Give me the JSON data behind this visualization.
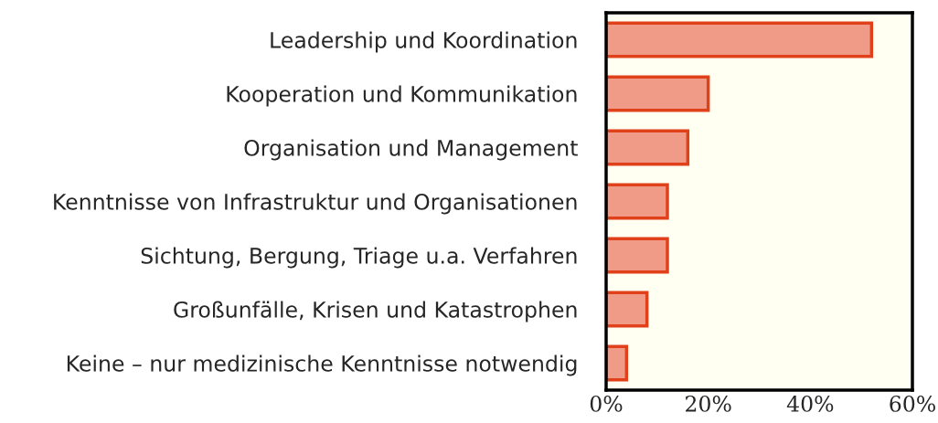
{
  "chart_data": {
    "type": "bar",
    "orientation": "horizontal",
    "categories": [
      "Leadership und Koordination",
      "Kooperation und Kommunikation",
      "Organisation und Management",
      "Kenntnisse von Infrastruktur und Organisationen",
      "Sichtung, Bergung, Triage u.a. Verfahren",
      "Großunfälle, Krisen und Katastrophen",
      "Keine – nur medizinische Kenntnisse notwendig"
    ],
    "values": [
      52,
      20,
      16,
      12,
      12,
      8,
      4
    ],
    "color": "#f09a88",
    "xlim": [
      0,
      60
    ],
    "xticks": [
      {
        "value": 0,
        "label": "0%"
      },
      {
        "value": 20,
        "label": "20%"
      },
      {
        "value": 40,
        "label": "40%"
      },
      {
        "value": 60,
        "label": "60%"
      }
    ],
    "grid": false
  }
}
